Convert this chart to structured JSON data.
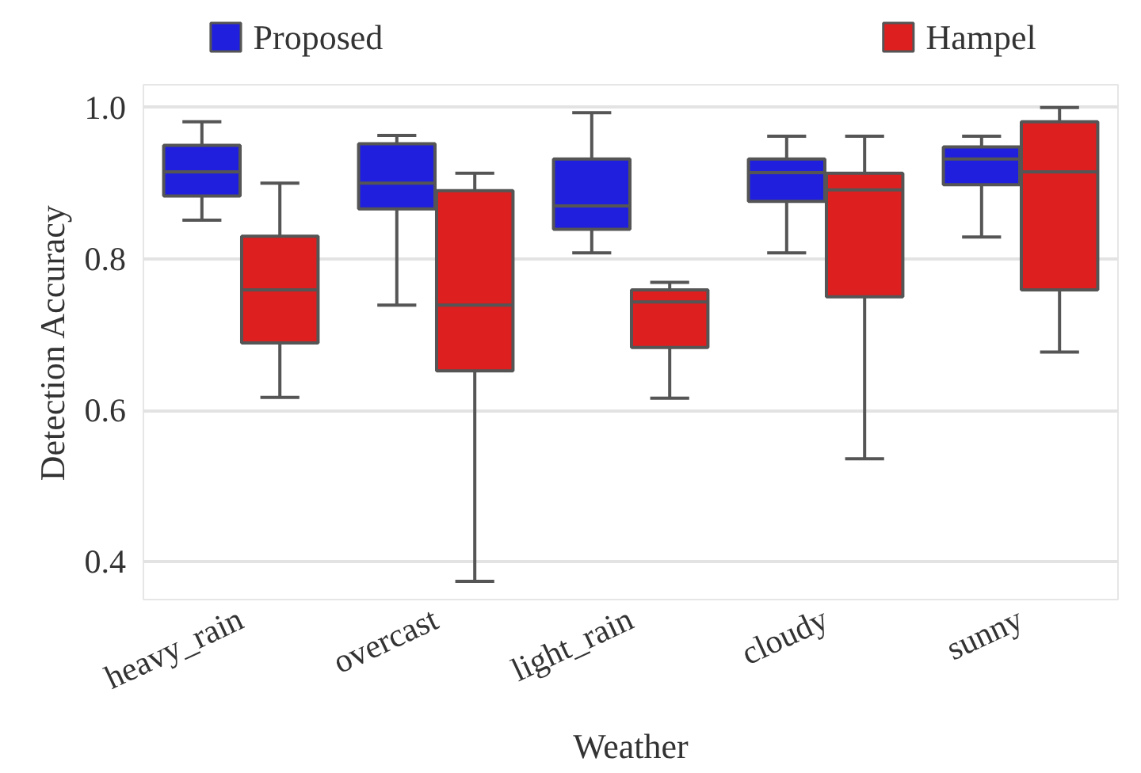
{
  "chart_data": {
    "type": "box",
    "xlabel": "Weather",
    "ylabel": "Detection Accuracy",
    "categories": [
      "heavy_rain",
      "overcast",
      "light_rain",
      "cloudy",
      "sunny"
    ],
    "ylim": [
      0.35,
      1.03
    ],
    "yticks": [
      0.4,
      0.6,
      0.8,
      {
        "value": 1.0,
        "label": "1.0"
      }
    ],
    "grid": "y",
    "legend": "top",
    "series": [
      {
        "name": "Proposed",
        "color": "#1f1fdd",
        "boxes": [
          {
            "low": 0.851,
            "q1": 0.883,
            "median": 0.915,
            "q3": 0.95,
            "high": 0.981
          },
          {
            "low": 0.739,
            "q1": 0.866,
            "median": 0.9,
            "q3": 0.952,
            "high": 0.963
          },
          {
            "low": 0.808,
            "q1": 0.839,
            "median": 0.87,
            "q3": 0.932,
            "high": 0.993
          },
          {
            "low": 0.808,
            "q1": 0.876,
            "median": 0.914,
            "q3": 0.932,
            "high": 0.962
          },
          {
            "low": 0.829,
            "q1": 0.898,
            "median": 0.932,
            "q3": 0.948,
            "high": 0.962
          }
        ]
      },
      {
        "name": "Hampel",
        "color": "#dd1f1f",
        "boxes": [
          {
            "low": 0.617,
            "q1": 0.689,
            "median": 0.759,
            "q3": 0.83,
            "high": 0.9
          },
          {
            "low": 0.374,
            "q1": 0.652,
            "median": 0.739,
            "q3": 0.89,
            "high": 0.913
          },
          {
            "low": 0.616,
            "q1": 0.683,
            "median": 0.743,
            "q3": 0.759,
            "high": 0.769
          },
          {
            "low": 0.536,
            "q1": 0.75,
            "median": 0.891,
            "q3": 0.913,
            "high": 0.962
          },
          {
            "low": 0.677,
            "q1": 0.759,
            "median": 0.915,
            "q3": 0.981,
            "high": 1.0
          }
        ]
      }
    ]
  }
}
